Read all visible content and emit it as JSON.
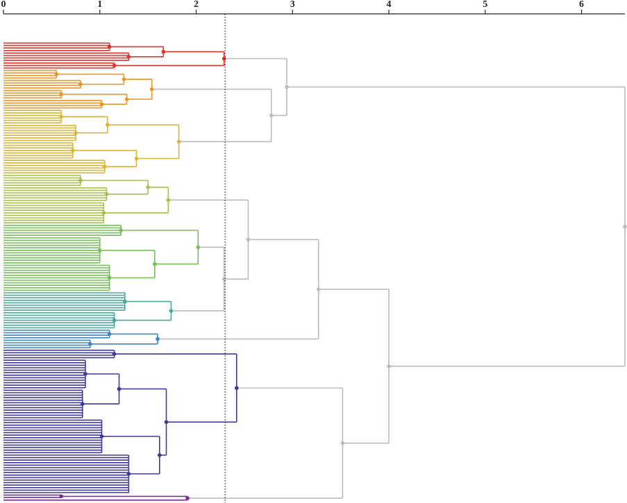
{
  "chart_data": {
    "type": "dendrogram",
    "xlim": [
      0,
      6.45
    ],
    "xticks": [
      0,
      1,
      2,
      3,
      4,
      5,
      6
    ],
    "threshold": 2.3,
    "link_color": "#bbbbbb",
    "tree": {
      "h": 6.45,
      "children": [
        {
          "h": 2.94,
          "children": [
            {
              "h": 2.29,
              "color": "#e0302a",
              "children": [
                {
                  "h": 1.66,
                  "children": [
                    {
                      "h": 1.1,
                      "n": 4
                    },
                    {
                      "h": 1.3,
                      "n": 4
                    }
                  ]
                },
                {
                  "h": 1.15,
                  "n": 3
                }
              ]
            },
            {
              "h": 2.78,
              "children": [
                {
                  "h": 1.54,
                  "color": "#e8962c",
                  "children": [
                    {
                      "h": 1.25,
                      "children": [
                        {
                          "h": 0.55,
                          "n": 4
                        },
                        {
                          "h": 0.8,
                          "n": 4
                        }
                      ]
                    },
                    {
                      "h": 1.28,
                      "children": [
                        {
                          "h": 0.6,
                          "n": 4
                        },
                        {
                          "h": 1.02,
                          "n": 4
                        }
                      ]
                    }
                  ]
                },
                {
                  "h": 1.82,
                  "color": "#d8b43a",
                  "children": [
                    {
                      "h": 1.08,
                      "children": [
                        {
                          "h": 0.6,
                          "n": 6
                        },
                        {
                          "h": 0.75,
                          "n": 7
                        }
                      ]
                    },
                    {
                      "h": 1.38,
                      "children": [
                        {
                          "h": 0.72,
                          "n": 7
                        },
                        {
                          "h": 1.05,
                          "n": 6
                        }
                      ]
                    }
                  ]
                }
              ]
            }
          ]
        },
        {
          "h": 4.0,
          "children": [
            {
              "h": 3.27,
              "children": [
                {
                  "h": 2.54,
                  "children": [
                    {
                      "h": 1.71,
                      "color": "#a8c04a",
                      "children": [
                        {
                          "h": 1.5,
                          "children": [
                            {
                              "h": 0.8,
                              "n": 5
                            },
                            {
                              "h": 1.07,
                              "n": 6
                            }
                          ]
                        },
                        {
                          "h": 1.04,
                          "n": 9
                        }
                      ]
                    },
                    {
                      "h": 2.29,
                      "children": [
                        {
                          "h": 2.02,
                          "color": "#78bc5c",
                          "children": [
                            {
                              "h": 1.22,
                              "n": 5
                            },
                            {
                              "h": 1.57,
                              "children": [
                                {
                                  "h": 1.0,
                                  "n": 11
                                },
                                {
                                  "h": 1.1,
                                  "n": 11
                                }
                              ]
                            }
                          ]
                        },
                        {
                          "h": 1.74,
                          "color": "#4aa89a",
                          "children": [
                            {
                              "h": 1.26,
                              "n": 8
                            },
                            {
                              "h": 1.15,
                              "n": 7
                            }
                          ]
                        }
                      ]
                    }
                  ]
                },
                {
                  "h": 1.6,
                  "color": "#3a88c4",
                  "children": [
                    {
                      "h": 1.1,
                      "n": 4
                    },
                    {
                      "h": 0.9,
                      "n": 4
                    }
                  ]
                }
              ]
            },
            {
              "h": 3.52,
              "children": [
                {
                  "h": 2.42,
                  "color": "#3f3a98",
                  "children": [
                    {
                      "h": 1.15,
                      "n": 4
                    },
                    {
                      "h": 1.69,
                      "children": [
                        {
                          "h": 1.2,
                          "children": [
                            {
                              "h": 0.85,
                              "n": 12
                            },
                            {
                              "h": 0.82,
                              "n": 12
                            }
                          ]
                        },
                        {
                          "h": 1.62,
                          "children": [
                            {
                              "h": 1.02,
                              "n": 14
                            },
                            {
                              "h": 1.3,
                              "n": 16
                            }
                          ]
                        }
                      ]
                    }
                  ]
                },
                {
                  "h": 1.91,
                  "color": "#7e2a96",
                  "children": [
                    {
                      "h": 0.6,
                      "n": 2
                    },
                    {
                      "n": 1
                    }
                  ]
                }
              ]
            }
          ]
        }
      ]
    }
  }
}
